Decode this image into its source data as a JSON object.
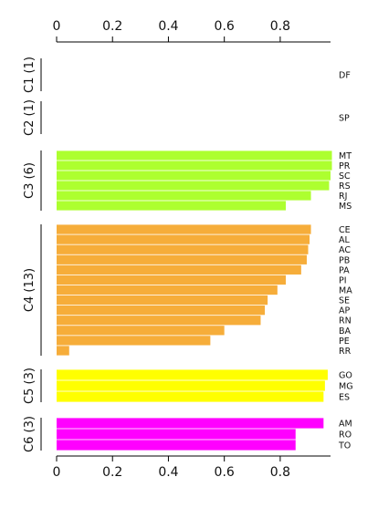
{
  "chart_data": {
    "type": "bar",
    "orientation": "horizontal",
    "xlim": [
      0,
      0.98
    ],
    "x_ticks": [
      {
        "value": 0,
        "label": "0"
      },
      {
        "value": 0.2,
        "label": "0.2"
      },
      {
        "value": 0.4,
        "label": "0.4"
      },
      {
        "value": 0.6,
        "label": "0.6"
      },
      {
        "value": 0.8,
        "label": "0.8"
      }
    ],
    "groups": [
      {
        "label": "C1 (1)",
        "color": "#ffffff",
        "items": [
          {
            "label": "DF",
            "value": 0
          }
        ]
      },
      {
        "label": "C2 (1)",
        "color": "#ffffff",
        "items": [
          {
            "label": "SP",
            "value": 0
          }
        ]
      },
      {
        "label": "C3 (6)",
        "color": "#adff2f",
        "items": [
          {
            "label": "MT",
            "value": 0.985
          },
          {
            "label": "PR",
            "value": 0.985
          },
          {
            "label": "SC",
            "value": 0.98
          },
          {
            "label": "RS",
            "value": 0.975
          },
          {
            "label": "RJ",
            "value": 0.91
          },
          {
            "label": "MS",
            "value": 0.82
          }
        ]
      },
      {
        "label": "C4 (13)",
        "color": "#f6ad3a",
        "items": [
          {
            "label": "CE",
            "value": 0.91
          },
          {
            "label": "AL",
            "value": 0.905
          },
          {
            "label": "AC",
            "value": 0.9
          },
          {
            "label": "PB",
            "value": 0.895
          },
          {
            "label": "PA",
            "value": 0.875
          },
          {
            "label": "PI",
            "value": 0.82
          },
          {
            "label": "MA",
            "value": 0.79
          },
          {
            "label": "SE",
            "value": 0.755
          },
          {
            "label": "AP",
            "value": 0.745
          },
          {
            "label": "RN",
            "value": 0.73
          },
          {
            "label": "BA",
            "value": 0.6
          },
          {
            "label": "PE",
            "value": 0.55
          },
          {
            "label": "RR",
            "value": 0.045
          }
        ]
      },
      {
        "label": "C5 (3)",
        "color": "#ffff00",
        "items": [
          {
            "label": "GO",
            "value": 0.97
          },
          {
            "label": "MG",
            "value": 0.96
          },
          {
            "label": "ES",
            "value": 0.955
          }
        ]
      },
      {
        "label": "C6 (3)",
        "color": "#ff00ff",
        "items": [
          {
            "label": "AM",
            "value": 0.955
          },
          {
            "label": "RO",
            "value": 0.855
          },
          {
            "label": "TO",
            "value": 0.855
          }
        ]
      }
    ]
  }
}
